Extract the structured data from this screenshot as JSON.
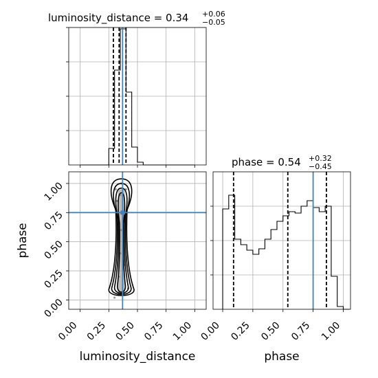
{
  "chart_data": {
    "type": "corner",
    "parameters": [
      "luminosity_distance",
      "phase"
    ],
    "truths": {
      "luminosity_distance": 0.37,
      "phase": 0.75
    },
    "grid": true,
    "ticks": {
      "luminosity_distance": [
        "0.00",
        "0.25",
        "0.50",
        "0.75",
        "1.00"
      ],
      "phase": [
        "0.00",
        "0.25",
        "0.50",
        "0.75",
        "1.00"
      ]
    },
    "panels": {
      "luminosity_distance_hist": {
        "title": "luminosity_distance = 0.34",
        "title_plus": "+0.06",
        "title_minus": "−0.05",
        "xlim": [
          -0.1,
          1.1
        ],
        "ylim": [
          0,
          1.0
        ],
        "bins": [
          0.0,
          0.05,
          0.1,
          0.15,
          0.2,
          0.25,
          0.3,
          0.35,
          0.4,
          0.45,
          0.5,
          0.55,
          0.6,
          0.65,
          0.7,
          0.75,
          0.8,
          0.85,
          0.9,
          0.95,
          1.0
        ],
        "values": [
          0,
          0,
          0,
          0,
          0,
          0.12,
          0.69,
          0.99,
          0.53,
          0.13,
          0.02,
          0,
          0,
          0,
          0,
          0,
          0,
          0,
          0,
          0
        ],
        "quantiles": [
          0.29,
          0.34,
          0.4
        ]
      },
      "phase_hist": {
        "title": "phase = 0.54",
        "title_plus": "+0.32",
        "title_minus": "−0.45",
        "xlim": [
          -0.08,
          1.06
        ],
        "ylim": [
          0,
          1.0
        ],
        "bins": [
          0.0,
          0.05,
          0.1,
          0.15,
          0.2,
          0.25,
          0.3,
          0.35,
          0.4,
          0.45,
          0.5,
          0.55,
          0.6,
          0.65,
          0.7,
          0.75,
          0.8,
          0.85,
          0.9,
          0.95,
          1.0,
          1.05
        ],
        "values": [
          0.73,
          0.83,
          0.51,
          0.47,
          0.43,
          0.4,
          0.44,
          0.51,
          0.58,
          0.64,
          0.68,
          0.71,
          0.7,
          0.75,
          0.79,
          0.74,
          0.71,
          0.75,
          0.24,
          0.02,
          0
        ],
        "quantiles": [
          0.09,
          0.54,
          0.86
        ]
      },
      "joint": {
        "xlim": [
          -0.1,
          1.1
        ],
        "ylim": [
          -0.08,
          1.1
        ],
        "points": [
          [
            0.33,
            0.05
          ],
          [
            0.34,
            0.2
          ],
          [
            0.35,
            0.4
          ],
          [
            0.36,
            0.6
          ],
          [
            0.36,
            0.75
          ],
          [
            0.35,
            0.9
          ],
          [
            0.36,
            1.0
          ],
          [
            0.39,
            0.3
          ],
          [
            0.32,
            0.85
          ],
          [
            0.4,
            0.95
          ],
          [
            0.3,
            0.02
          ],
          [
            0.42,
            0.1
          ],
          [
            0.38,
            0.5
          ],
          [
            0.33,
            0.65
          ],
          [
            0.31,
            0.95
          ]
        ],
        "contours": [
          {
            "cx": 0.36,
            "y0": 0.02,
            "y1": 1.04,
            "half_width": 0.11
          },
          {
            "cx": 0.36,
            "y0": 0.03,
            "y1": 1.0,
            "half_width": 0.085
          },
          {
            "cx": 0.36,
            "y0": 0.04,
            "y1": 0.96,
            "half_width": 0.06
          },
          {
            "cx": 0.36,
            "y0": 0.05,
            "y1": 0.92,
            "half_width": 0.035
          }
        ]
      }
    },
    "xlabels": [
      "luminosity_distance",
      "phase"
    ],
    "ylabels": [
      "phase"
    ]
  }
}
